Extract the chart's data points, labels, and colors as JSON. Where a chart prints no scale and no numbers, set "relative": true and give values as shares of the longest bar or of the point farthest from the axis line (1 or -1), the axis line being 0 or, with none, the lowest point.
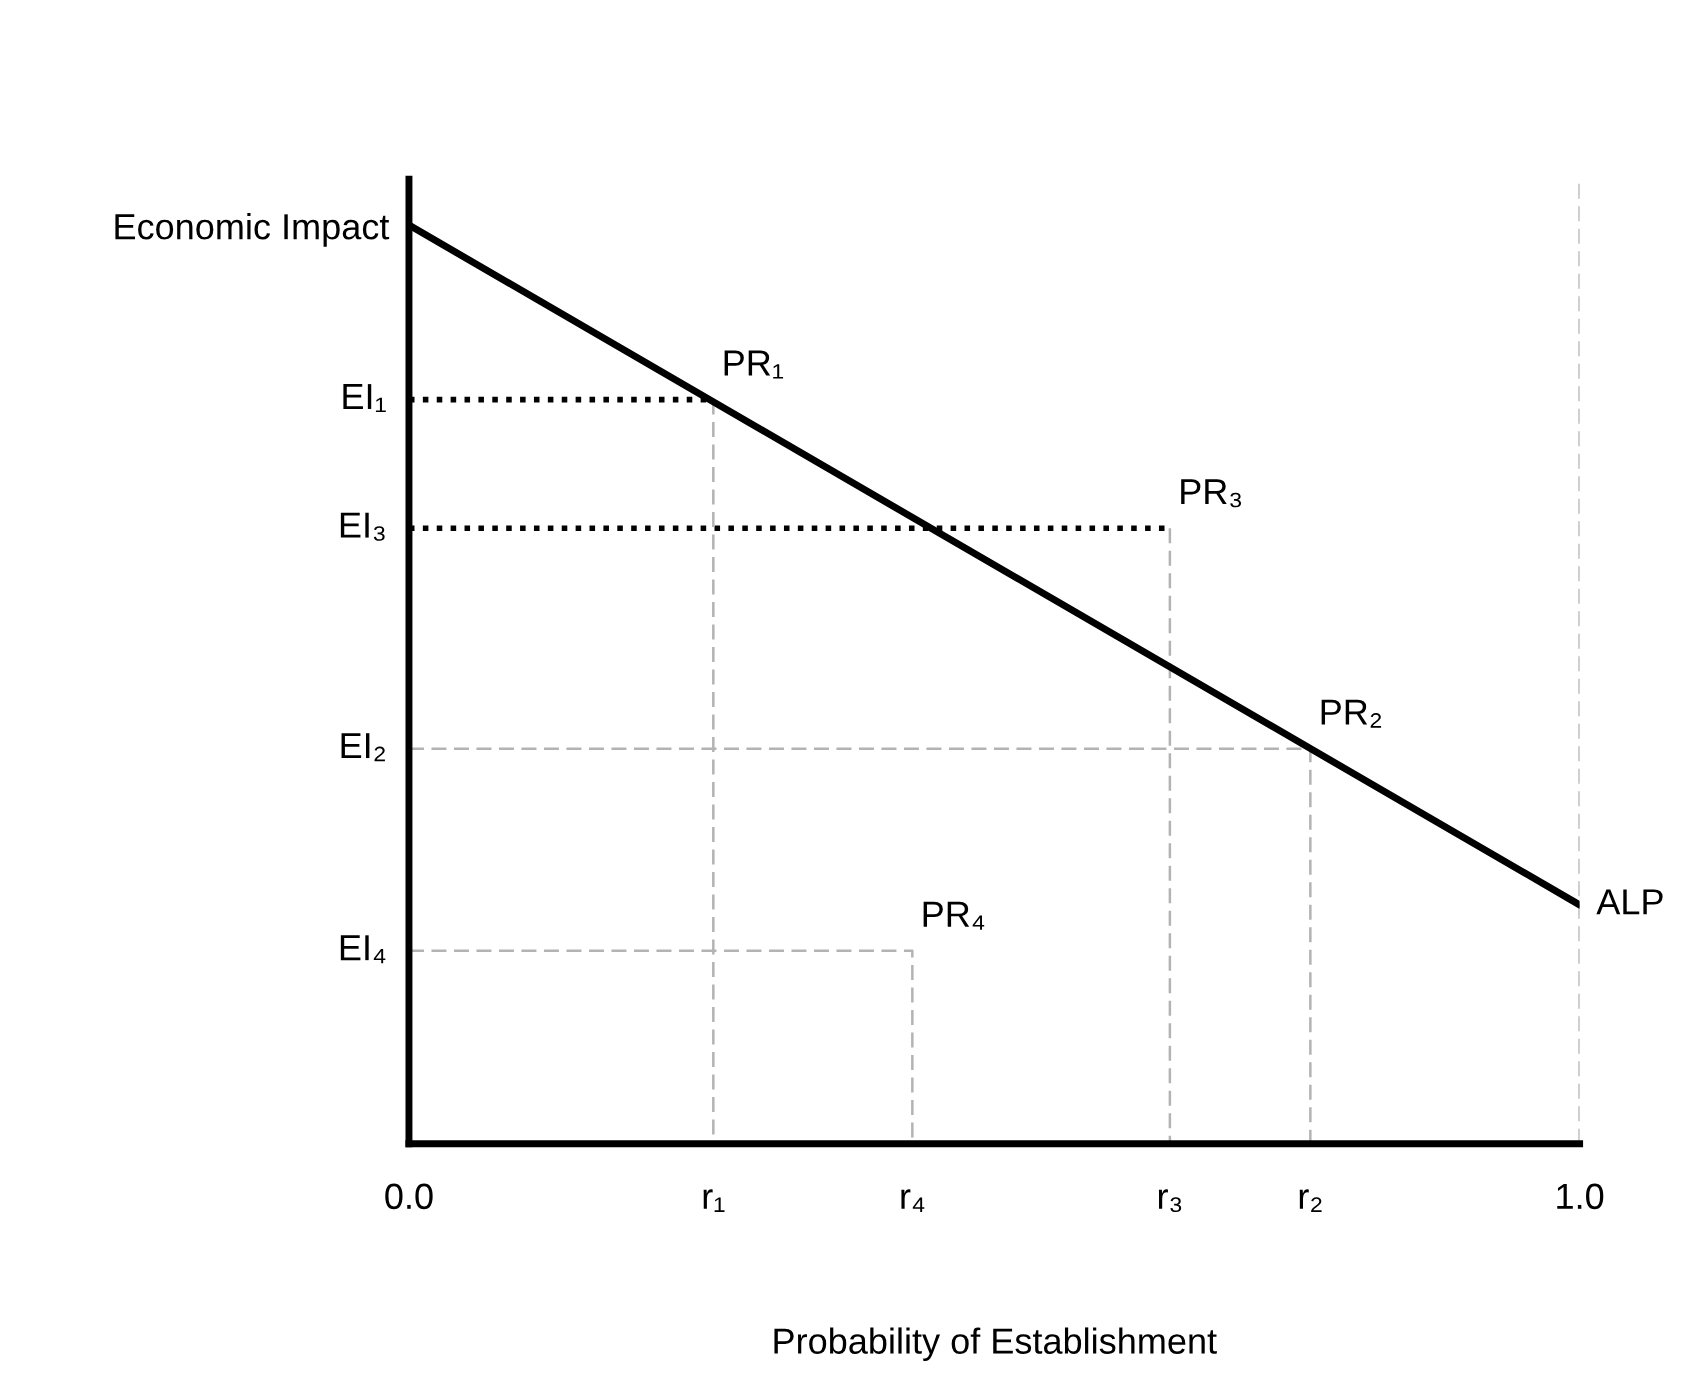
{
  "chart_data": {
    "type": "line",
    "relative": true,
    "xlabel": "Probability of Establishment",
    "ylabel": "Economic Impact",
    "xlim": [
      0,
      1.0
    ],
    "xticks": [
      {
        "value": 0,
        "label": "0.0"
      },
      {
        "value": 0.26,
        "label": "r₁"
      },
      {
        "value": 0.43,
        "label": "r₄"
      },
      {
        "value": 0.65,
        "label": "r₃"
      },
      {
        "value": 0.77,
        "label": "r₂"
      },
      {
        "value": 1.0,
        "label": "1.0"
      }
    ],
    "series": [
      {
        "x": [
          0,
          0.26
        ],
        "values": [
          0.81,
          0.81
        ],
        "color": "#000000",
        "line_style": "dotted"
      },
      {
        "x": [
          0,
          0.65
        ],
        "values": [
          0.67,
          0.67
        ],
        "color": "#000000",
        "line_style": "dotted"
      },
      {
        "x": [
          0.26,
          0.26
        ],
        "values": [
          0.81,
          0
        ],
        "color": "#b3b3b3",
        "line_style": "dashed"
      },
      {
        "x": [
          0.65,
          0.65
        ],
        "values": [
          0.67,
          0
        ],
        "color": "#b3b3b3",
        "line_style": "dashed"
      },
      {
        "x": [
          0,
          0.77,
          0.77
        ],
        "values": [
          0.43,
          0.43,
          0
        ],
        "color": "#b3b3b3",
        "line_style": "dashed"
      },
      {
        "x": [
          0,
          0.43,
          0.43
        ],
        "values": [
          0.21,
          0.21,
          0
        ],
        "color": "#b3b3b3",
        "line_style": "dashed"
      },
      {
        "name": "ALP",
        "x": [
          0,
          1.0
        ],
        "values": [
          1,
          0.26
        ],
        "color": "#000000",
        "line_style": "solid"
      }
    ],
    "ref_lines": [
      {
        "axis": "x",
        "value": 1.0,
        "label": null,
        "color": "#b3b3b3",
        "line_style": "dashed"
      }
    ],
    "annotations": [
      {
        "text": "EI₁",
        "x": 0,
        "y": 0.81
      },
      {
        "text": "EI₃",
        "x": 0,
        "y": 0.67
      },
      {
        "text": "EI₂",
        "x": 0,
        "y": 0.43
      },
      {
        "text": "EI₄",
        "x": 0,
        "y": 0.21
      },
      {
        "text": "PR₁",
        "x": 0.26,
        "y": 0.81
      },
      {
        "text": "PR₃",
        "x": 0.65,
        "y": 0.67
      },
      {
        "text": "PR₂",
        "x": 0.77,
        "y": 0.43
      },
      {
        "text": "PR₄",
        "x": 0.43,
        "y": 0.21
      }
    ],
    "grid": false,
    "legend": false
  }
}
